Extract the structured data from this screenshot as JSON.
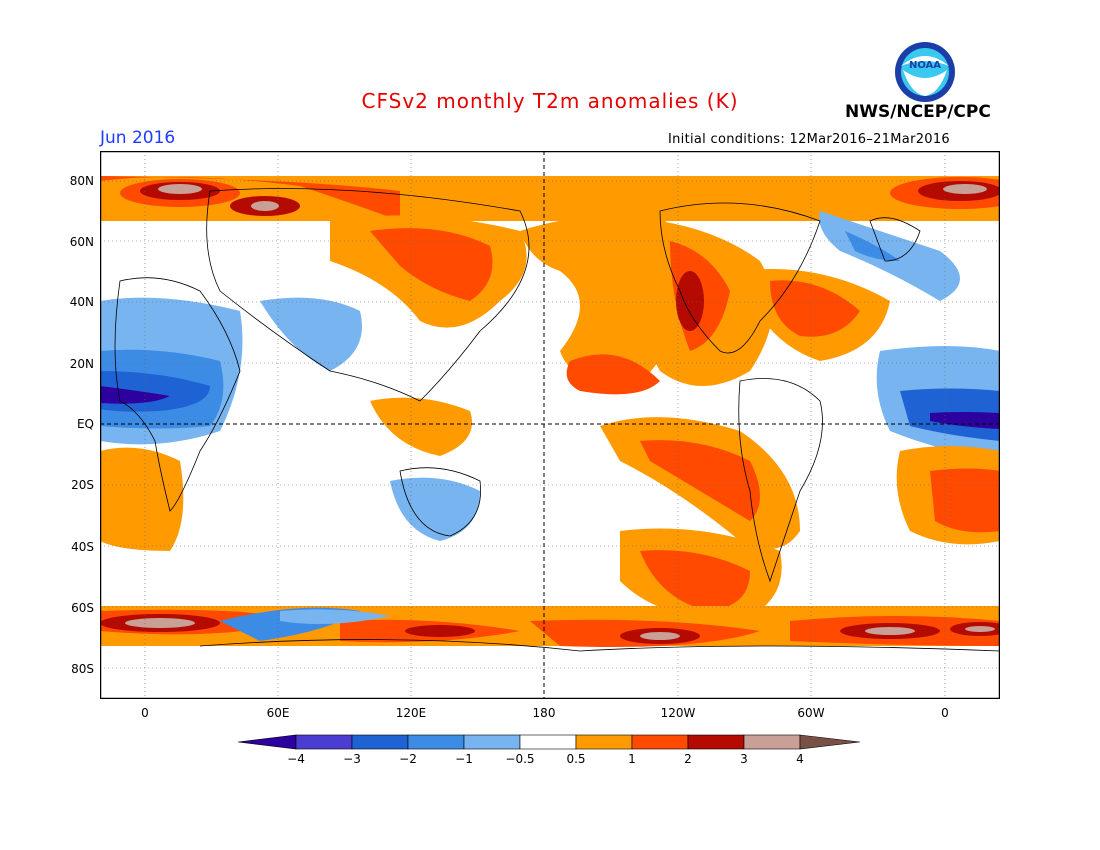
{
  "title": "CFSv2 monthly T2m anomalies (K)",
  "org_label": "NWS/NCEP/CPC",
  "logo_text": "NOAA",
  "target_month": "Jun 2016",
  "initial_conditions": "Initial conditions: 12Mar2016–21Mar2016",
  "colors": {
    "title": "#e60000",
    "month": "#1e3cff",
    "logo_ring": "#1a3fa8",
    "logo_inner": "#39c8f0"
  },
  "lat_labels": [
    "80N",
    "60N",
    "40N",
    "20N",
    "EQ",
    "20S",
    "40S",
    "60S",
    "80S"
  ],
  "lon_labels": [
    "0",
    "60E",
    "120E",
    "180",
    "120W",
    "60W",
    "0"
  ],
  "colorbar": {
    "labels": [
      "−4",
      "−3",
      "−2",
      "−1",
      "−0.5",
      "0.5",
      "1",
      "2",
      "3",
      "4"
    ],
    "colors": [
      "#2d00a0",
      "#4b3cd2",
      "#1f62d4",
      "#3c8ce6",
      "#78b4f0",
      "#ffffff",
      "#ff9a00",
      "#ff4a00",
      "#b40a00",
      "#c8a096",
      "#785046"
    ]
  },
  "map_features": {
    "equator_dashed": true,
    "dateline_dashed": true,
    "dotted_grid": true
  }
}
